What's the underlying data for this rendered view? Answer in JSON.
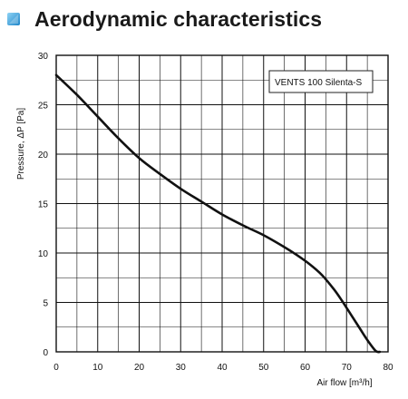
{
  "header": {
    "title": "Aerodynamic characteristics",
    "icon": "blue-square-icon",
    "accent_color": "#3aa4dd"
  },
  "chart_data": {
    "type": "line",
    "title": "",
    "xlabel": "Air flow [m³/h]",
    "ylabel": "Pressure, ΔP [Pa]",
    "xlim": [
      0,
      80
    ],
    "ylim": [
      0,
      30
    ],
    "x_ticks": [
      0,
      10,
      20,
      30,
      40,
      50,
      60,
      70,
      80
    ],
    "y_ticks": [
      0,
      5,
      10,
      15,
      20,
      25,
      30
    ],
    "grid": true,
    "legend_position": "top-right",
    "series": [
      {
        "name": "VENTS 100 Silenta-S",
        "color": "#111111",
        "x": [
          0,
          5,
          10,
          15,
          20,
          25,
          30,
          35,
          40,
          45,
          50,
          55,
          58,
          61,
          64,
          67,
          69,
          71,
          73,
          75,
          77,
          78
        ],
        "y": [
          28,
          26,
          23.8,
          21.6,
          19.6,
          18,
          16.5,
          15.2,
          13.9,
          12.8,
          11.8,
          10.6,
          9.8,
          8.9,
          7.8,
          6.3,
          5.1,
          3.8,
          2.5,
          1.2,
          0.1,
          0
        ]
      }
    ]
  }
}
